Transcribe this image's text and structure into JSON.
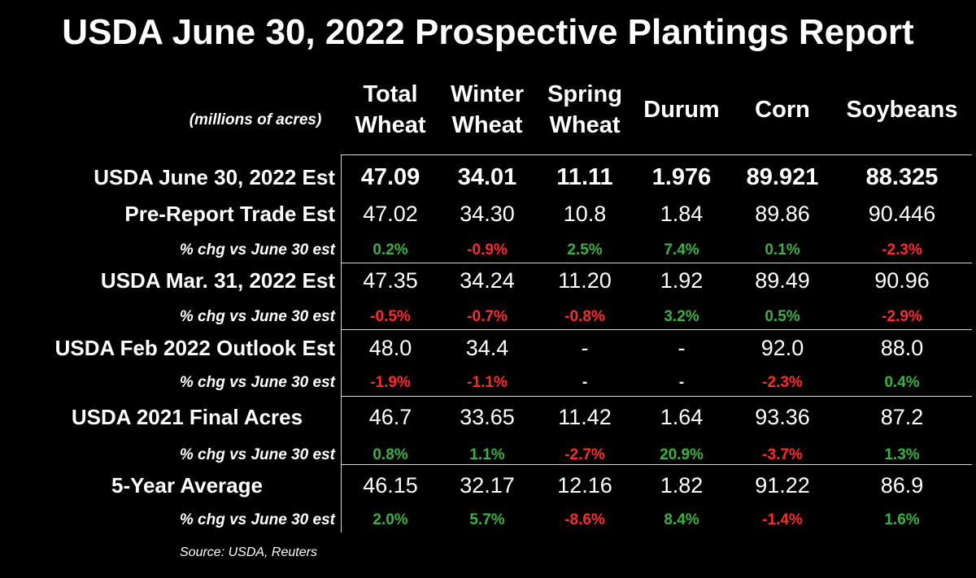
{
  "title": "USDA June 30, 2022 Prospective Plantings Report",
  "units_note": "(millions of acres)",
  "source": "Source: USDA, Reuters",
  "colors": {
    "background": "#000000",
    "text": "#ffffff",
    "positive": "#3cb043",
    "negative": "#ff2a2a",
    "neutral": "#ffffff",
    "rules": "#d8d8d8"
  },
  "chart_data": {
    "type": "table",
    "title": "USDA June 30, 2022 Prospective Plantings Report",
    "units": "(millions of acres)",
    "columns": [
      {
        "line1": "Total",
        "line2": "Wheat"
      },
      {
        "line1": "Winter",
        "line2": "Wheat"
      },
      {
        "line1": "Spring",
        "line2": "Wheat"
      },
      {
        "line1": "Durum",
        "line2": ""
      },
      {
        "line1": "Corn",
        "line2": ""
      },
      {
        "line1": "Soybeans",
        "line2": ""
      }
    ],
    "rows": [
      {
        "label": "USDA June 30, 2022 Est",
        "values": [
          "47.09",
          "34.01",
          "11.11",
          "1.976",
          "89.921",
          "88.325"
        ]
      },
      {
        "label": "Pre-Report Trade Est",
        "values": [
          "47.02",
          "34.30",
          "10.8",
          "1.84",
          "89.86",
          "90.446"
        ],
        "pct_label": "% chg vs June 30 est",
        "pct": [
          "0.2%",
          "-0.9%",
          "2.5%",
          "7.4%",
          "0.1%",
          "-2.3%"
        ]
      },
      {
        "label": "USDA Mar. 31, 2022 Est",
        "values": [
          "47.35",
          "34.24",
          "11.20",
          "1.92",
          "89.49",
          "90.96"
        ],
        "pct_label": "% chg vs June 30 est",
        "pct": [
          "-0.5%",
          "-0.7%",
          "-0.8%",
          "3.2%",
          "0.5%",
          "-2.9%"
        ]
      },
      {
        "label": "USDA Feb 2022 Outlook Est",
        "values": [
          "48.0",
          "34.4",
          "-",
          "-",
          "92.0",
          "88.0"
        ],
        "pct_label": "% chg vs June 30 est",
        "pct": [
          "-1.9%",
          "-1.1%",
          "-",
          "-",
          "-2.3%",
          "0.4%"
        ]
      },
      {
        "label": "USDA 2021 Final Acres",
        "values": [
          "46.7",
          "33.65",
          "11.42",
          "1.64",
          "93.36",
          "87.2"
        ],
        "pct_label": "% chg vs June 30 est",
        "pct": [
          "0.8%",
          "1.1%",
          "-2.7%",
          "20.9%",
          "-3.7%",
          "1.3%"
        ]
      },
      {
        "label": "5-Year Average",
        "values": [
          "46.15",
          "32.17",
          "12.16",
          "1.82",
          "91.22",
          "86.9"
        ],
        "pct_label": "% chg vs June 30 est",
        "pct": [
          "2.0%",
          "5.7%",
          "-8.6%",
          "8.4%",
          "-1.4%",
          "1.6%"
        ]
      }
    ]
  }
}
